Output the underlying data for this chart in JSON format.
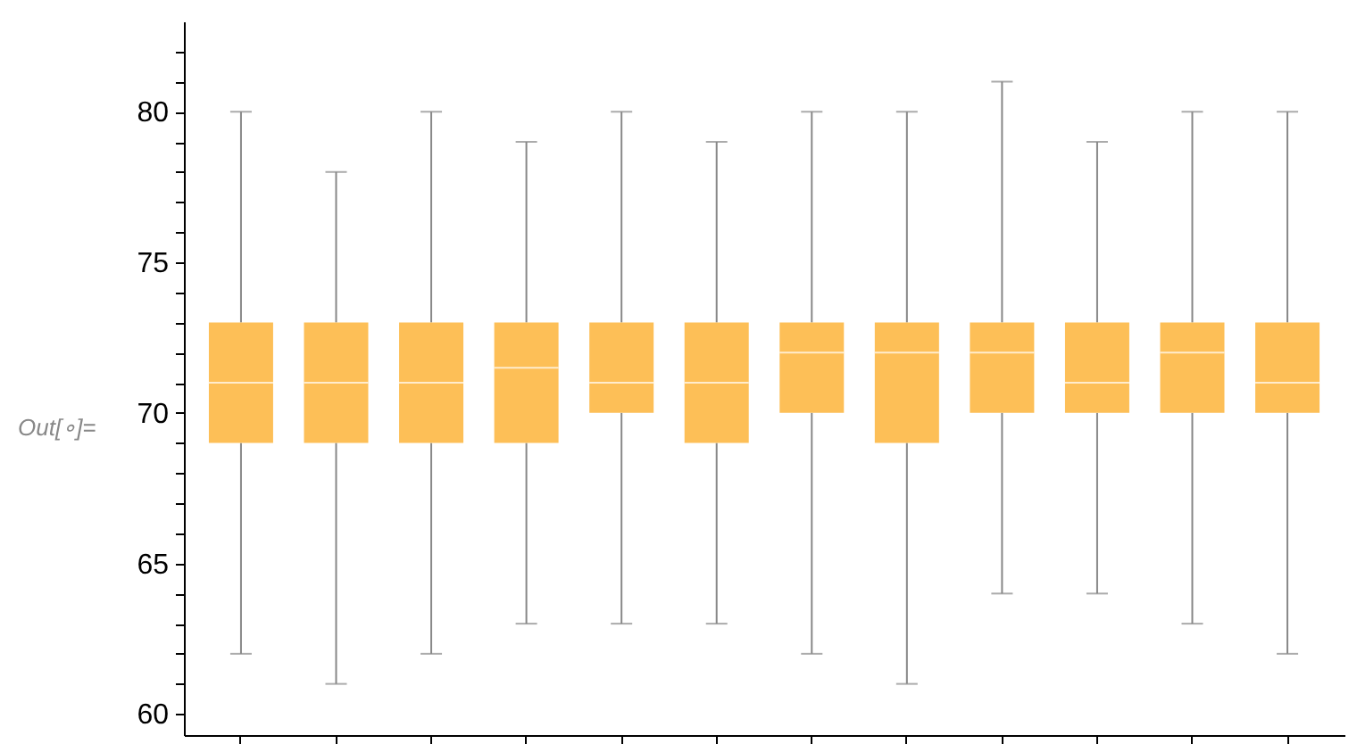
{
  "chart_data": {
    "type": "box",
    "categories": [
      null,
      null,
      null,
      null,
      null,
      null,
      null,
      null,
      null,
      null,
      null,
      null
    ],
    "color": "#fdbf57",
    "boxes": [
      {
        "low": 62,
        "q1": 69,
        "median": 71,
        "q3": 73,
        "high": 80
      },
      {
        "low": 61,
        "q1": 69,
        "median": 71,
        "q3": 73,
        "high": 78
      },
      {
        "low": 62,
        "q1": 69,
        "median": 71,
        "q3": 73,
        "high": 80
      },
      {
        "low": 63,
        "q1": 69,
        "median": 71.5,
        "q3": 73,
        "high": 79
      },
      {
        "low": 63,
        "q1": 70,
        "median": 71,
        "q3": 73,
        "high": 80
      },
      {
        "low": 63,
        "q1": 69,
        "median": 71,
        "q3": 73,
        "high": 79
      },
      {
        "low": 62,
        "q1": 70,
        "median": 72,
        "q3": 73,
        "high": 80
      },
      {
        "low": 61,
        "q1": 69,
        "median": 72,
        "q3": 73,
        "high": 80
      },
      {
        "low": 64,
        "q1": 70,
        "median": 72,
        "q3": 73,
        "high": 81
      },
      {
        "low": 64,
        "q1": 70,
        "median": 71,
        "q3": 73,
        "high": 79
      },
      {
        "low": 63,
        "q1": 70,
        "median": 72,
        "q3": 73,
        "high": 80
      },
      {
        "low": 62,
        "q1": 70,
        "median": 71,
        "q3": 73,
        "high": 80
      }
    ],
    "ylim": [
      59.3,
      83
    ],
    "yticks": [
      60,
      {
        "value": 61,
        "label": null
      },
      {
        "value": 62,
        "label": null
      },
      {
        "value": 63,
        "label": null
      },
      {
        "value": 64,
        "label": null
      },
      65,
      {
        "value": 66,
        "label": null
      },
      {
        "value": 67,
        "label": null
      },
      {
        "value": 68,
        "label": null
      },
      {
        "value": 69,
        "label": null
      },
      70,
      {
        "value": 71,
        "label": null
      },
      {
        "value": 72,
        "label": null
      },
      {
        "value": 73,
        "label": null
      },
      {
        "value": 74,
        "label": null
      },
      75,
      {
        "value": 76,
        "label": null
      },
      {
        "value": 77,
        "label": null
      },
      {
        "value": 78,
        "label": null
      },
      {
        "value": 79,
        "label": null
      },
      80,
      {
        "value": 81,
        "label": null
      },
      {
        "value": 82,
        "label": null
      }
    ],
    "tick_labels": "y",
    "grid": false,
    "annotations": [
      "Out[∘]="
    ]
  }
}
